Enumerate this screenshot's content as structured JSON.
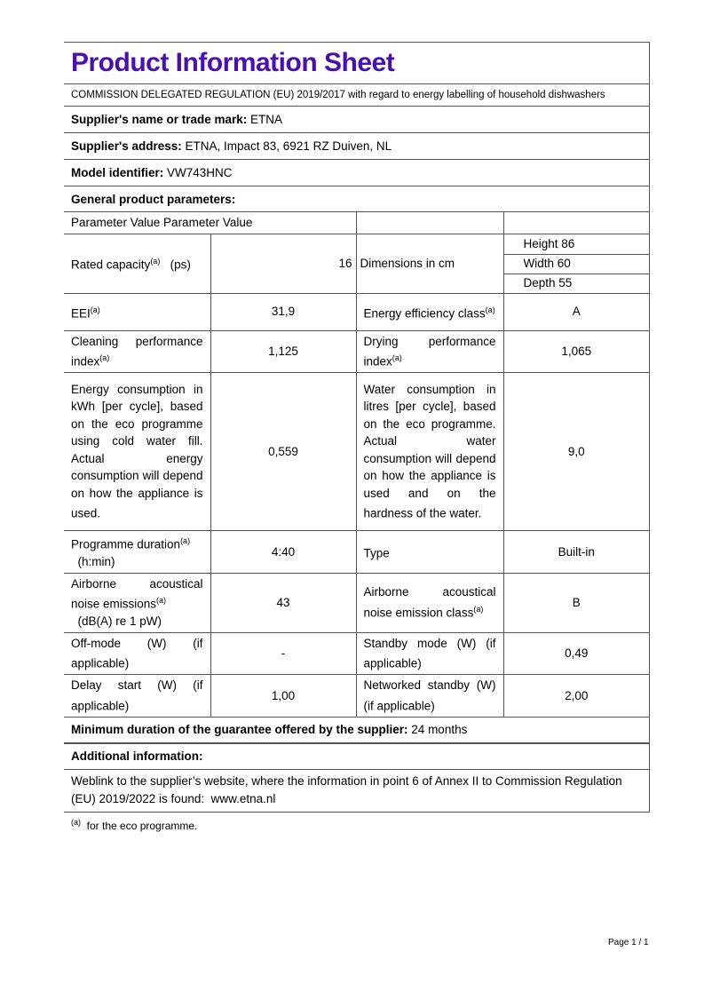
{
  "title": "Product Information Sheet",
  "regulation": "COMMISSION DELEGATED REGULATION (EU) 2019/2017 with regard to energy labelling of household dishwashers",
  "supplier_name": {
    "label": "Supplier's name or trade mark:",
    "value": "ETNA"
  },
  "supplier_address": {
    "label": "Supplier's address:",
    "value": "ETNA, Impact 83, 6921 RZ Duiven, NL"
  },
  "model": {
    "label": "Model identifier:",
    "value": "VW743HNC"
  },
  "general_label": "General product parameters:",
  "table": {
    "header": "Parameter Value Parameter Value",
    "rated_capacity": {
      "label": "Rated capacity",
      "sup": "(a)",
      "unit": "(ps)",
      "value": "16"
    },
    "dimensions": {
      "label": "Dimensions in cm",
      "height": "Height 86",
      "width": "Width 60",
      "depth": "Depth 55"
    },
    "rows": [
      {
        "p1": "EEI",
        "s1": "(a)",
        "v1": "31,9",
        "p2": "Energy efficiency class",
        "s2": "(a)",
        "v2": "A"
      },
      {
        "p1": "Cleaning performance index",
        "s1": "(a)",
        "v1": "1,125",
        "p2": "Drying performance index",
        "s2": "(a)",
        "v2": "1,065"
      },
      {
        "p1": "Energy consumption in kWh [per cycle], based on the eco programme using cold water fill. Actual energy consumption will depend on how the appliance is used.",
        "s1": "",
        "v1": "0,559",
        "p2": "Water consumption in litres [per cycle], based on the eco programme. Actual water consumption will depend on how the appliance is used and on the hardness of the water.",
        "s2": "",
        "v2": "9,0"
      },
      {
        "p1": "Programme duration",
        "s1": "(a)",
        "p1b": "(h:min)",
        "v1": "4:40",
        "p2": "Type",
        "s2": "",
        "v2": "Built-in"
      },
      {
        "p1": "Airborne acoustical noise emissions",
        "s1": "(a)",
        "p1b": "(dB(A) re 1 pW)",
        "v1": "43",
        "p2": "Airborne acoustical noise emission class",
        "s2": "(a)",
        "v2": "B"
      },
      {
        "p1": "Off-mode (W) (if applicable)",
        "s1": "",
        "v1": "-",
        "p2": "Standby mode (W) (if applicable)",
        "s2": "",
        "v2": "0,49"
      },
      {
        "p1": "Delay start (W) (if applicable)",
        "s1": "",
        "v1": "1,00",
        "p2": "Networked standby (W) (if applicable)",
        "s2": "",
        "v2": "2,00"
      }
    ]
  },
  "guarantee": {
    "label": "Minimum duration of the guarantee offered by the supplier:",
    "value": "24 months"
  },
  "additional_label": "Additional information:",
  "weblink": {
    "text": "Weblink to the supplier’s website, where the information in point 6 of Annex II to Commission Regulation (EU) 2019/2022 is found:",
    "url": "www.etna.nl"
  },
  "footnote": {
    "sup": "(a)",
    "text": "for the eco programme."
  },
  "page": "Page 1 / 1",
  "colors": {
    "title": "#4a0fb0"
  }
}
